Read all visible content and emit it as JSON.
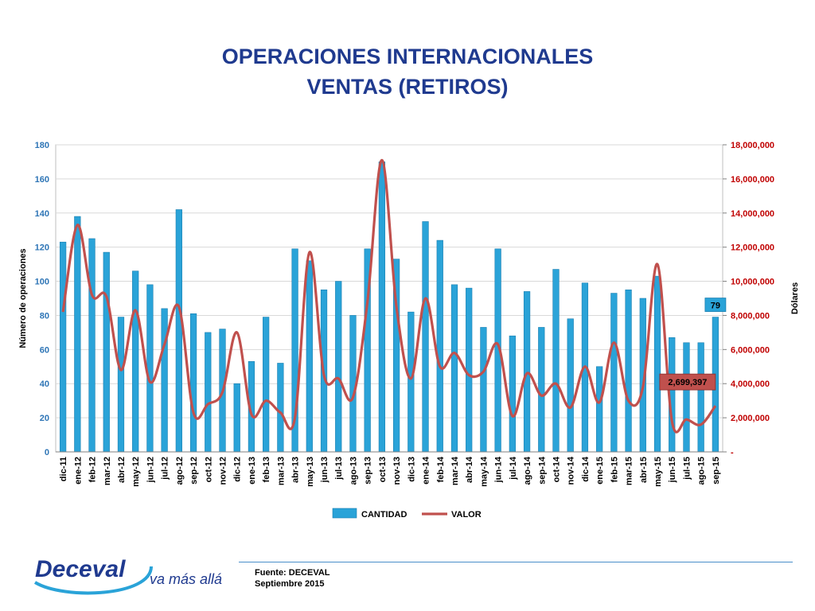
{
  "title_line1": "OPERACIONES INTERNACIONALES",
  "title_line2": "VENTAS (RETIROS)",
  "footer": {
    "source": "Fuente: DECEVAL",
    "date": "Septiembre 2015"
  },
  "logo": {
    "brand": "Deceval",
    "tagline": "va más allá"
  },
  "colors": {
    "title": "#1f3a8f",
    "bars": "#2aa3d8",
    "line": "#c0504d",
    "left_axis": "#2e75b6",
    "right_axis": "#c00000"
  },
  "chart_data": {
    "type": "bar",
    "title": "",
    "ylabel": "Número de operaciones",
    "y2label": "Dólares",
    "ylim": [
      0,
      180
    ],
    "y2lim": [
      0,
      18000000
    ],
    "y_ticks": [
      "0",
      "20",
      "40",
      "60",
      "80",
      "100",
      "120",
      "140",
      "160",
      "180"
    ],
    "y2_ticks": [
      "-",
      "2,000,000",
      "4,000,000",
      "6,000,000",
      "8,000,000",
      "10,000,000",
      "12,000,000",
      "14,000,000",
      "16,000,000",
      "18,000,000"
    ],
    "grid": true,
    "legend": "bottom",
    "categories": [
      "dic-11",
      "ene-12",
      "feb-12",
      "mar-12",
      "abr-12",
      "may-12",
      "jun-12",
      "jul-12",
      "ago-12",
      "sep-12",
      "oct-12",
      "nov-12",
      "dic-12",
      "ene-13",
      "feb-13",
      "mar-13",
      "abr-13",
      "may-13",
      "jun-13",
      "jul-13",
      "ago-13",
      "sep-13",
      "oct-13",
      "nov-13",
      "dic-13",
      "ene-14",
      "feb-14",
      "mar-14",
      "abr-14",
      "may-14",
      "jun-14",
      "jul-14",
      "ago-14",
      "sep-14",
      "oct-14",
      "nov-14",
      "dic-14",
      "ene-15",
      "feb-15",
      "mar-15",
      "abr-15",
      "may-15",
      "jun-15",
      "jul-15",
      "ago-15",
      "sep-15"
    ],
    "series": [
      {
        "name": "CANTIDAD",
        "kind": "bar",
        "axis": "left",
        "values": [
          123,
          138,
          125,
          117,
          79,
          106,
          98,
          84,
          142,
          81,
          70,
          72,
          40,
          53,
          79,
          52,
          119,
          112,
          95,
          100,
          80,
          119,
          170,
          113,
          82,
          135,
          124,
          98,
          96,
          73,
          119,
          68,
          94,
          73,
          107,
          78,
          99,
          50,
          93,
          95,
          90,
          103,
          67,
          64,
          64,
          79
        ]
      },
      {
        "name": "VALOR",
        "kind": "line",
        "axis": "right",
        "values": [
          8200000,
          13300000,
          9200000,
          9100000,
          4800000,
          8300000,
          4100000,
          6300000,
          8500000,
          2300000,
          2800000,
          3500000,
          7000000,
          2200000,
          3000000,
          2300000,
          2000000,
          11700000,
          4500000,
          4300000,
          3200000,
          8800000,
          17100000,
          8500000,
          4300000,
          9000000,
          5000000,
          5800000,
          4500000,
          4700000,
          6300000,
          2100000,
          4600000,
          3300000,
          4000000,
          2600000,
          5000000,
          2900000,
          6400000,
          3000000,
          3800000,
          11000000,
          1800000,
          1900000,
          1600000,
          2699397
        ]
      }
    ],
    "annotations": [
      {
        "text": "79",
        "series": "CANTIDAD",
        "category": "sep-15"
      },
      {
        "text": "2,699,397",
        "series": "VALOR",
        "category": "sep-15"
      }
    ]
  }
}
